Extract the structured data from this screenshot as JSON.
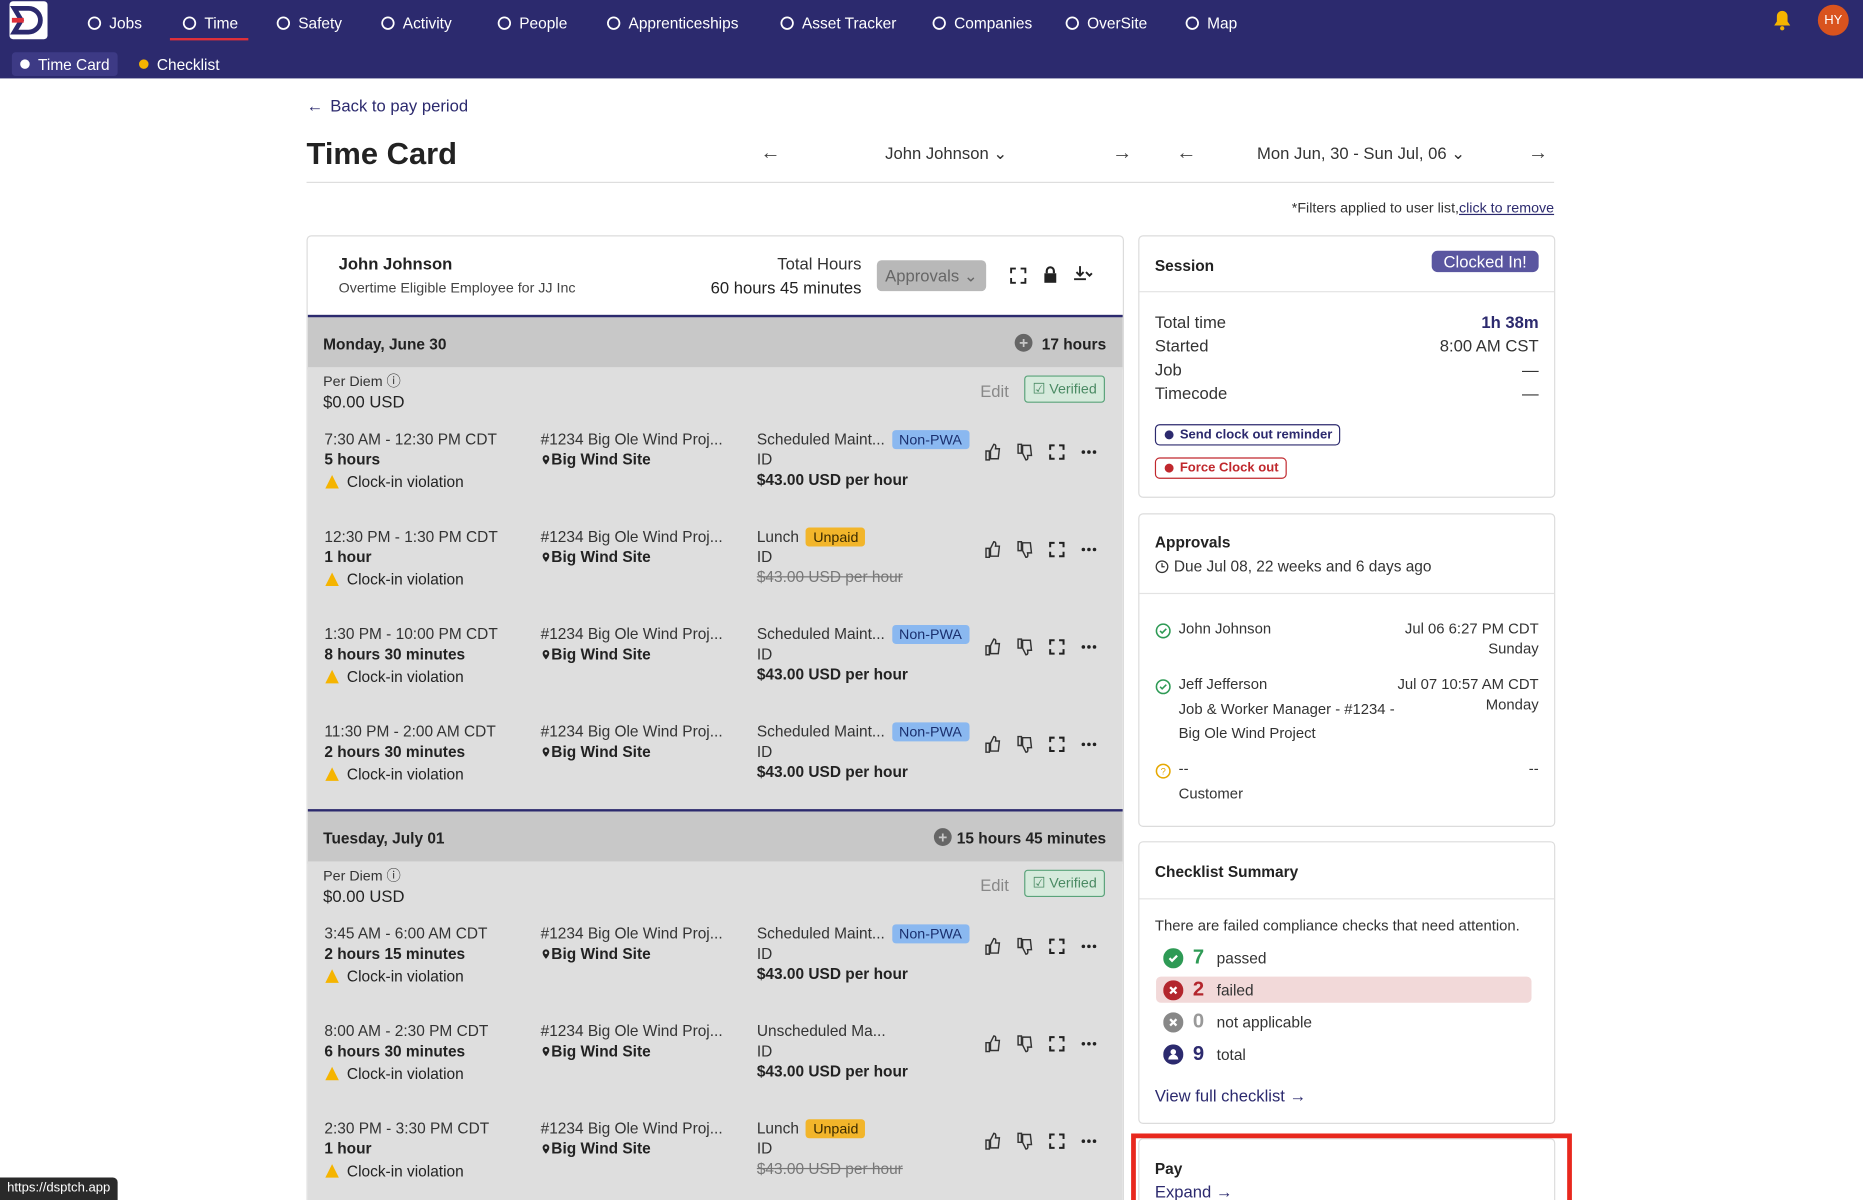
{
  "nav": {
    "items": [
      "Jobs",
      "Time",
      "Safety",
      "Activity",
      "People",
      "Apprenticeships",
      "Asset Tracker",
      "Companies",
      "OverSite",
      "Map"
    ],
    "avatar": "HY",
    "subnav": [
      "Time Card",
      "Checklist"
    ]
  },
  "header": {
    "back": "Back to pay period",
    "title": "Time Card",
    "employee": "John Johnson",
    "period": "Mon Jun, 30 - Sun Jul, 06",
    "filter_note": "*Filters applied to user list,",
    "filter_link": "click to remove"
  },
  "timecard": {
    "name": "John Johnson",
    "subtitle": "Overtime Eligible Employee for JJ Inc",
    "total_label": "Total Hours",
    "total": "60 hours 45 minutes",
    "approvals_button": "Approvals",
    "days": [
      {
        "date": "Monday, June 30",
        "total": "17 hours",
        "per_diem_label": "Per Diem",
        "per_diem": "$0.00 USD",
        "edit": "Edit",
        "status": "Verified",
        "entries": [
          {
            "time": "7:30 AM - 12:30 PM CDT",
            "duration": "5 hours",
            "violation": "Clock-in violation",
            "job": "#1234 Big Ole Wind Proj...",
            "site": "Big Wind Site",
            "code": "Scheduled Maint...",
            "tag": "Non-PWA",
            "id": "ID",
            "rate": "$43.00 USD per hour",
            "rate_struck": false
          },
          {
            "time": "12:30 PM - 1:30 PM CDT",
            "duration": "1 hour",
            "violation": "Clock-in violation",
            "job": "#1234 Big Ole Wind Proj...",
            "site": "Big Wind Site",
            "code": "Lunch",
            "tag": "Unpaid",
            "id": "ID",
            "rate": "$43.00 USD per hour",
            "rate_struck": true
          },
          {
            "time": "1:30 PM - 10:00 PM CDT",
            "duration": "8 hours 30 minutes",
            "violation": "Clock-in violation",
            "job": "#1234 Big Ole Wind Proj...",
            "site": "Big Wind Site",
            "code": "Scheduled Maint...",
            "tag": "Non-PWA",
            "id": "ID",
            "rate": "$43.00 USD per hour",
            "rate_struck": false
          },
          {
            "time": "11:30 PM - 2:00 AM CDT",
            "duration": "2 hours 30 minutes",
            "violation": "Clock-in violation",
            "job": "#1234 Big Ole Wind Proj...",
            "site": "Big Wind Site",
            "code": "Scheduled Maint...",
            "tag": "Non-PWA",
            "id": "ID",
            "rate": "$43.00 USD per hour",
            "rate_struck": false
          }
        ]
      },
      {
        "date": "Tuesday, July 01",
        "total": "15 hours 45 minutes",
        "per_diem_label": "Per Diem",
        "per_diem": "$0.00 USD",
        "edit": "Edit",
        "status": "Verified",
        "entries": [
          {
            "time": "3:45 AM - 6:00 AM CDT",
            "duration": "2 hours 15 minutes",
            "violation": "Clock-in violation",
            "job": "#1234 Big Ole Wind Proj...",
            "site": "Big Wind Site",
            "code": "Scheduled Maint...",
            "tag": "Non-PWA",
            "id": "ID",
            "rate": "$43.00 USD per hour",
            "rate_struck": false
          },
          {
            "time": "8:00 AM - 2:30 PM CDT",
            "duration": "6 hours 30 minutes",
            "violation": "Clock-in violation",
            "job": "#1234 Big Ole Wind Proj...",
            "site": "Big Wind Site",
            "code": "Unscheduled Ma...",
            "id": "ID",
            "rate": "$43.00 USD per hour",
            "rate_struck": false
          },
          {
            "time": "2:30 PM - 3:30 PM CDT",
            "duration": "1 hour",
            "violation": "Clock-in violation",
            "job": "#1234 Big Ole Wind Proj...",
            "site": "Big Wind Site",
            "code": "Lunch",
            "tag": "Unpaid",
            "id": "ID",
            "rate": "$43.00 USD per hour",
            "rate_struck": true
          }
        ]
      }
    ]
  },
  "session": {
    "title": "Session",
    "badge": "Clocked In!",
    "rows": [
      {
        "label": "Total time",
        "value": "1h 38m"
      },
      {
        "label": "Started",
        "value": "8:00 AM CST"
      },
      {
        "label": "Job",
        "value": "—"
      },
      {
        "label": "Timecode",
        "value": "—"
      }
    ],
    "buttons": [
      "Send clock out reminder",
      "Force Clock out"
    ]
  },
  "approvals": {
    "title": "Approvals",
    "due": "Due Jul 08, 22 weeks and 6 days ago",
    "entries": [
      {
        "name": "John Johnson",
        "time": "Jul 06 6:27 PM CDT",
        "day": "Sunday",
        "status": "approved"
      },
      {
        "name": "Jeff Jefferson",
        "role": "Job & Worker Manager - #1234 - Big Ole Wind Project",
        "time": "Jul 07 10:57 AM CDT",
        "day": "Monday",
        "status": "approved"
      },
      {
        "name": "--",
        "role": "Customer",
        "time": "--",
        "status": "pending"
      }
    ]
  },
  "checklist": {
    "title": "Checklist Summary",
    "message": "There are failed compliance checks that need attention.",
    "counts": [
      {
        "value": "7",
        "label": "passed"
      },
      {
        "value": "2",
        "label": "failed"
      },
      {
        "value": "0",
        "label": "not applicable"
      },
      {
        "value": "9",
        "label": "total"
      }
    ],
    "link": "View full checklist"
  },
  "pay": {
    "title": "Pay",
    "link": "Expand"
  },
  "status_bar": "https://dsptch.app"
}
